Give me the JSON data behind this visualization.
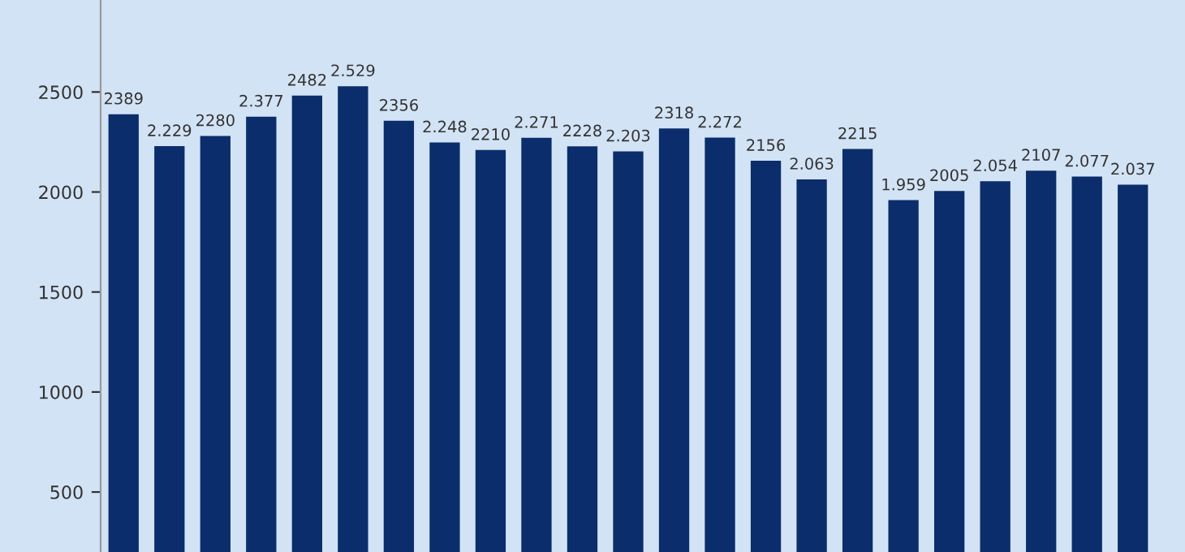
{
  "chart_data": {
    "type": "bar",
    "categories": [
      null,
      null,
      null,
      null,
      null,
      null,
      null,
      null,
      null,
      null,
      null,
      null,
      null,
      null,
      null,
      null,
      null,
      null,
      null,
      null,
      null,
      null,
      null
    ],
    "values": [
      2389,
      2229,
      2280,
      2377,
      2482,
      2529,
      2356,
      2248,
      2210,
      2271,
      2228,
      2203,
      2318,
      2272,
      2156,
      2063,
      2215,
      1959,
      2005,
      2054,
      2107,
      2077,
      2037
    ],
    "value_labels": [
      "2389",
      "2.229",
      "2280",
      "2.377",
      "2482",
      "2.529",
      "2356",
      "2.248",
      "2210",
      "2.271",
      "2228",
      "2.203",
      "2318",
      "2.272",
      "2156",
      "2.063",
      "2215",
      "1.959",
      "2005",
      "2.054",
      "2107",
      "2.077",
      "2.037"
    ],
    "color": "#0b2d6b",
    "ylim": [
      200,
      2960
    ],
    "yticks": [
      500,
      1000,
      1500,
      2000,
      2500
    ],
    "tick_labels": "y",
    "grid": false
  }
}
